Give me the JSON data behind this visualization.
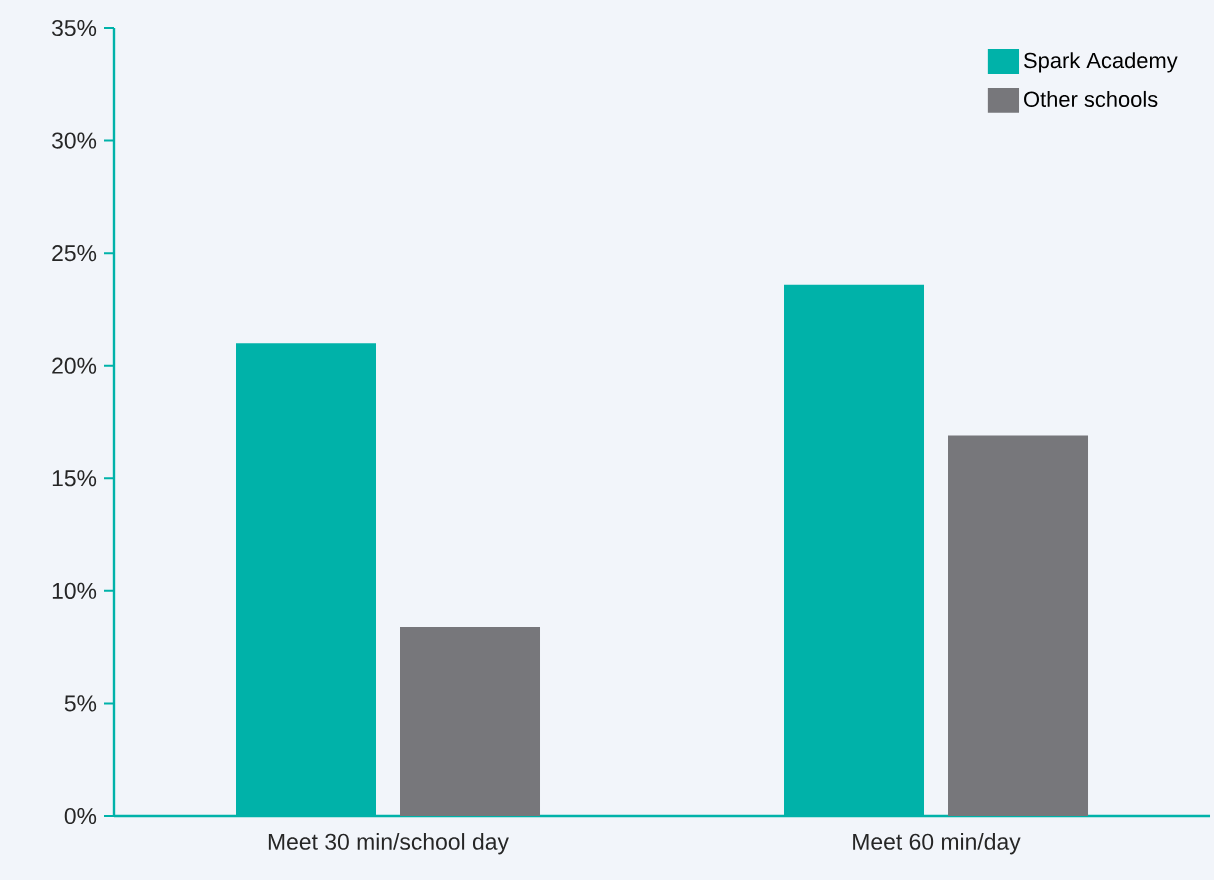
{
  "chart_data": {
    "type": "bar",
    "categories": [
      "Meet 30 min/school day",
      "Meet 60 min/day"
    ],
    "series": [
      {
        "name": "Spark Academy",
        "color": "#00b2a9",
        "values": [
          21,
          23.6
        ]
      },
      {
        "name": "Other schools",
        "color": "#77777b",
        "values": [
          8.4,
          16.9
        ]
      }
    ],
    "ylim": [
      0,
      35
    ],
    "yticks": [
      {
        "value": 0,
        "label": "0%"
      },
      {
        "value": 5,
        "label": "5%"
      },
      {
        "value": 10,
        "label": "10%"
      },
      {
        "value": 15,
        "label": "15%"
      },
      {
        "value": 20,
        "label": "20%"
      },
      {
        "value": 25,
        "label": "25%"
      },
      {
        "value": 30,
        "label": "30%"
      },
      {
        "value": 35,
        "label": "35%"
      }
    ],
    "grid": false,
    "legend": "top right"
  }
}
